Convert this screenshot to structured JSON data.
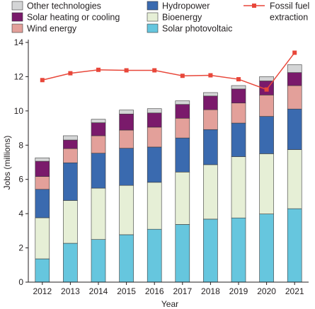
{
  "chart_data": {
    "type": "bar",
    "stacked": true,
    "xlabel": "Year",
    "ylabel": "Jobs (millions)",
    "ylim": [
      0,
      14
    ],
    "yticks": [
      0,
      2,
      4,
      6,
      8,
      10,
      12,
      14
    ],
    "grid": false,
    "legend_position": "top",
    "categories": [
      "2012",
      "2013",
      "2014",
      "2015",
      "2016",
      "2017",
      "2018",
      "2019",
      "2020",
      "2021"
    ],
    "series": [
      {
        "name": "Solar photovoltaic",
        "color": "#66c6de",
        "values": [
          1.36,
          2.27,
          2.49,
          2.77,
          3.09,
          3.37,
          3.68,
          3.75,
          3.98,
          4.29
        ]
      },
      {
        "name": "Bioenergy",
        "color": "#e6efd6",
        "values": [
          2.4,
          2.5,
          3.0,
          2.88,
          2.74,
          3.06,
          3.18,
          3.58,
          3.52,
          3.45
        ]
      },
      {
        "name": "Hydropower",
        "color": "#3a6aaf",
        "values": [
          1.66,
          2.2,
          2.04,
          2.17,
          2.06,
          1.99,
          2.05,
          1.96,
          2.18,
          2.37
        ]
      },
      {
        "name": "Wind energy",
        "color": "#e3a09a",
        "values": [
          0.75,
          0.83,
          1.02,
          1.06,
          1.16,
          1.15,
          1.16,
          1.17,
          1.25,
          1.37
        ]
      },
      {
        "name": "Solar heating or cooling",
        "color": "#7a1a6b",
        "values": [
          0.89,
          0.5,
          0.76,
          0.94,
          0.83,
          0.81,
          0.8,
          0.82,
          0.82,
          0.76
        ]
      },
      {
        "name": "Other technologies",
        "color": "#d4d5d6",
        "values": [
          0.2,
          0.25,
          0.2,
          0.23,
          0.25,
          0.21,
          0.2,
          0.2,
          0.25,
          0.46
        ]
      }
    ],
    "line_series": {
      "name": "Fossil fuel extraction",
      "name_lines": [
        "Fossil fuel",
        "extraction"
      ],
      "color": "#e8473a",
      "values": [
        11.8,
        12.2,
        12.4,
        12.37,
        12.37,
        12.05,
        12.08,
        11.85,
        11.25,
        13.4
      ]
    }
  }
}
